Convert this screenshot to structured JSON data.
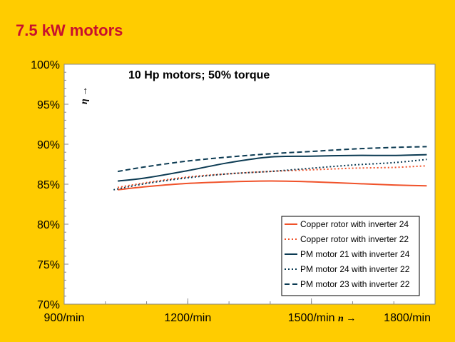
{
  "slide": {
    "title": "7.5 kW motors"
  },
  "chart_data": {
    "type": "line",
    "title": "10 Hp motors; 50% torque",
    "xlabel": "n →",
    "ylabel": "η →",
    "xlim": [
      900,
      1800
    ],
    "ylim": [
      70,
      100
    ],
    "x_ticks": [
      900,
      1200,
      1500,
      1800
    ],
    "x_tick_labels": [
      "900/min",
      "1200/min",
      "1500/min",
      "1800/min"
    ],
    "y_ticks": [
      70,
      75,
      80,
      85,
      90,
      95,
      100
    ],
    "y_tick_labels": [
      "70%",
      "75%",
      "80%",
      "85%",
      "90%",
      "95%",
      "100%"
    ],
    "grid": false,
    "legend_position": "bottom-right",
    "series": [
      {
        "name": "Copper rotor with inverter 24",
        "color": "#F0522A",
        "dash": "solid",
        "x": [
          1030,
          1100,
          1200,
          1300,
          1400,
          1500,
          1600,
          1700,
          1780
        ],
        "y": [
          84.3,
          84.7,
          85.1,
          85.3,
          85.4,
          85.3,
          85.1,
          84.9,
          84.8
        ]
      },
      {
        "name": "Copper rotor with inverter 22",
        "color": "#F0522A",
        "dash": "dotted",
        "x": [
          1030,
          1100,
          1200,
          1300,
          1400,
          1500,
          1600,
          1700,
          1780
        ],
        "y": [
          84.6,
          85.2,
          85.9,
          86.3,
          86.6,
          86.8,
          87.0,
          87.1,
          87.3
        ]
      },
      {
        "name": "PM motor 21 with inverter 24",
        "color": "#0B3A52",
        "dash": "solid",
        "x": [
          1030,
          1100,
          1200,
          1300,
          1400,
          1500,
          1600,
          1700,
          1780
        ],
        "y": [
          85.4,
          85.8,
          86.7,
          87.7,
          88.4,
          88.5,
          88.6,
          88.6,
          88.7
        ]
      },
      {
        "name": "PM motor 24 with inverter 22",
        "color": "#0B3A52",
        "dash": "dotted",
        "x": [
          1020,
          1100,
          1200,
          1300,
          1400,
          1500,
          1600,
          1700,
          1780
        ],
        "y": [
          84.3,
          85.1,
          85.8,
          86.3,
          86.6,
          87.0,
          87.4,
          87.7,
          88.1
        ]
      },
      {
        "name": "PM motor 23 with inverter 22",
        "color": "#0B3A52",
        "dash": "dashed",
        "x": [
          1030,
          1100,
          1200,
          1300,
          1400,
          1500,
          1600,
          1700,
          1780
        ],
        "y": [
          86.6,
          87.2,
          87.9,
          88.4,
          88.8,
          89.1,
          89.4,
          89.6,
          89.7
        ]
      }
    ]
  }
}
